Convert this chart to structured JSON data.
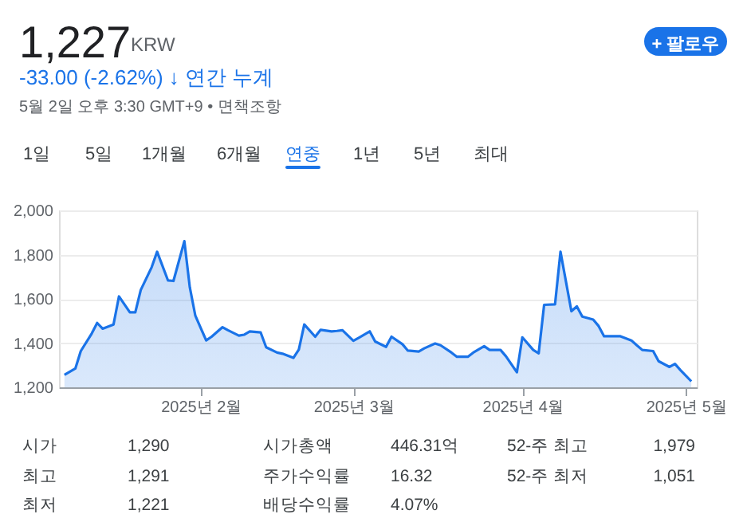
{
  "chart_data": {
    "type": "area",
    "annotations": [
      "1,227",
      "KRW",
      "-33.00 (-2.62%) ↓ 연간 누계",
      "5월 2일 오후 3:30 GMT+9 • 면책조항",
      "+ 팔로우",
      "1일",
      "5일",
      "1개월",
      "6개월",
      "연중",
      "1년",
      "5년",
      "최대",
      "시가",
      "1,290",
      "시가총액",
      "446.31억",
      "52-주 최고",
      "1,979",
      "최고",
      "1,291",
      "주가수익률",
      "16.32",
      "52-주 최저",
      "1,051",
      "최저",
      "1,221",
      "배당수익률",
      "4.07%"
    ],
    "x": [
      "2025-01-07",
      "2025-01-09",
      "2025-01-10",
      "2025-01-12",
      "2025-01-13",
      "2025-01-14",
      "2025-01-16",
      "2025-01-17",
      "2025-01-19",
      "2025-01-20",
      "2025-01-21",
      "2025-01-23",
      "2025-01-24",
      "2025-01-26",
      "2025-01-27",
      "2025-01-29",
      "2025-01-30",
      "2025-01-31",
      "2025-02-02",
      "2025-02-03",
      "2025-02-05",
      "2025-02-06",
      "2025-02-08",
      "2025-02-09",
      "2025-02-10",
      "2025-02-12",
      "2025-02-13",
      "2025-02-15",
      "2025-02-16",
      "2025-02-18",
      "2025-02-19",
      "2025-02-20",
      "2025-02-22",
      "2025-02-23",
      "2025-02-25",
      "2025-02-26",
      "2025-02-27",
      "2025-03-01",
      "2025-03-02",
      "2025-03-04",
      "2025-03-05",
      "2025-03-07",
      "2025-03-08",
      "2025-03-10",
      "2025-03-11",
      "2025-03-13",
      "2025-03-14",
      "2025-03-16",
      "2025-03-17",
      "2025-03-19",
      "2025-03-20",
      "2025-03-22",
      "2025-03-23",
      "2025-03-25",
      "2025-03-26",
      "2025-03-28",
      "2025-03-29",
      "2025-03-31",
      "2025-04-01",
      "2025-04-03",
      "2025-04-04",
      "2025-04-05",
      "2025-04-07",
      "2025-04-08",
      "2025-04-10",
      "2025-04-11",
      "2025-04-12",
      "2025-04-14",
      "2025-04-15",
      "2025-04-16",
      "2025-04-18",
      "2025-04-19",
      "2025-04-21",
      "2025-04-22",
      "2025-04-23",
      "2025-04-25",
      "2025-04-26",
      "2025-04-28",
      "2025-04-29",
      "2025-04-30",
      "2025-05-02"
    ],
    "series": [
      {
        "color": "#1a73e8",
        "values": [
          1256,
          1285,
          1364,
          1443,
          1491,
          1465,
          1484,
          1611,
          1539,
          1539,
          1640,
          1743,
          1813,
          1683,
          1681,
          1861,
          1652,
          1525,
          1412,
          1429,
          1472,
          1458,
          1434,
          1438,
          1453,
          1448,
          1381,
          1357,
          1352,
          1333,
          1371,
          1484,
          1429,
          1460,
          1453,
          1455,
          1458,
          1410,
          1424,
          1453,
          1407,
          1383,
          1429,
          1395,
          1366,
          1362,
          1376,
          1398,
          1390,
          1357,
          1338,
          1338,
          1357,
          1386,
          1369,
          1369,
          1340,
          1268,
          1426,
          1369,
          1354,
          1573,
          1575,
          1813,
          1544,
          1566,
          1520,
          1506,
          1477,
          1431,
          1431,
          1431,
          1412,
          1390,
          1369,
          1364,
          1318,
          1292,
          1306,
          1278,
          1227
        ]
      }
    ],
    "xlim": [
      "2025-01-06",
      "2025-05-03"
    ],
    "xticks": [
      {
        "value": "2025-02-01",
        "label": "2025년 2월"
      },
      {
        "value": "2025-03-01",
        "label": "2025년 3월"
      },
      {
        "value": "2025-04-01",
        "label": "2025년 4월"
      },
      {
        "value": "2025-05-01",
        "label": "2025년 5월"
      }
    ],
    "ylim": [
      1200,
      2000
    ],
    "yticks": [
      {
        "value": 1200,
        "label": "1,200"
      },
      {
        "value": 1400,
        "label": "1,400"
      },
      {
        "value": 1600,
        "label": "1,600"
      },
      {
        "value": 1800,
        "label": "1,800"
      },
      {
        "value": 2000,
        "label": "2,000"
      }
    ],
    "grid": "y"
  }
}
